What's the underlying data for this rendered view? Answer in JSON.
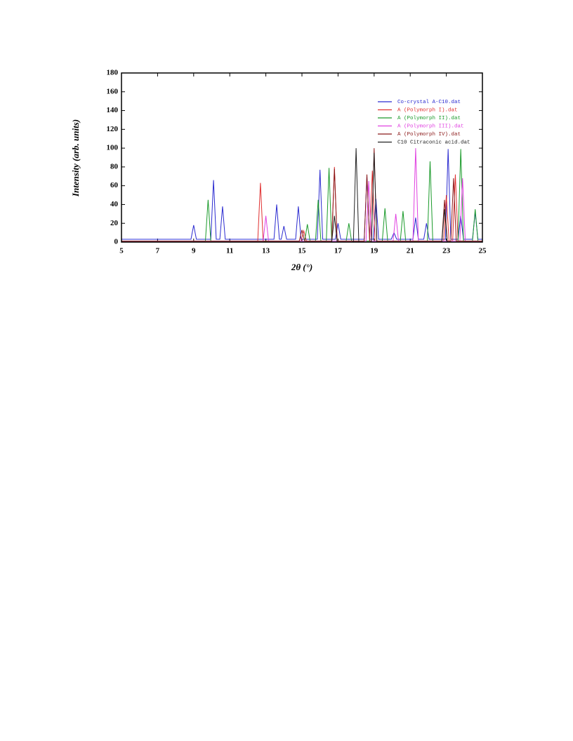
{
  "chart_data": {
    "type": "line",
    "xlabel": "2θ (°)",
    "ylabel": "Intensity (arb. units)",
    "xlim": [
      5,
      25
    ],
    "xticks": [
      5,
      7,
      9,
      11,
      13,
      15,
      17,
      19,
      21,
      23,
      25
    ],
    "ylim": [
      0,
      180
    ],
    "yticks": [
      0,
      20,
      40,
      60,
      80,
      100,
      120,
      140,
      160,
      180
    ],
    "legend": "upper right",
    "series": [
      {
        "name": "Co-crystal A-C10.dat",
        "color": "#2b2bd0",
        "x": [
          5,
          8.85,
          9.0,
          9.15,
          9.95,
          10.1,
          10.25,
          10.45,
          10.6,
          10.75,
          13.45,
          13.6,
          13.75,
          13.85,
          14.0,
          14.15,
          14.65,
          14.8,
          14.95,
          15.85,
          16.0,
          16.15,
          16.85,
          17.0,
          17.15,
          18.45,
          18.6,
          18.75,
          18.95,
          19.1,
          19.25,
          19.95,
          20.1,
          20.25,
          21.15,
          21.3,
          21.45,
          21.75,
          21.9,
          22.05,
          22.95,
          23.1,
          23.25,
          23.65,
          23.8,
          23.95,
          24.45,
          24.6,
          24.75,
          25
        ],
        "values": [
          3,
          3,
          18,
          3,
          3,
          66,
          3,
          3,
          38,
          3,
          3,
          40,
          3,
          3,
          17,
          3,
          3,
          38,
          3,
          3,
          77,
          3,
          3,
          20,
          3,
          3,
          70,
          3,
          3,
          46,
          3,
          3,
          10,
          3,
          3,
          26,
          3,
          3,
          20,
          3,
          3,
          99,
          3,
          3,
          28,
          3,
          3,
          32,
          3,
          3
        ]
      },
      {
        "name": "A (Polymorph I).dat",
        "color": "#e03030",
        "x": [
          5,
          12.55,
          12.7,
          12.85,
          14.95,
          15.1,
          15.25,
          16.65,
          16.8,
          16.95,
          18.75,
          18.9,
          19.05,
          22.85,
          23.0,
          23.15,
          23.35,
          23.5,
          23.65,
          25
        ],
        "values": [
          1,
          1,
          63,
          1,
          1,
          12,
          1,
          1,
          80,
          1,
          1,
          76,
          1,
          1,
          50,
          1,
          1,
          72,
          1,
          1
        ]
      },
      {
        "name": "A (Polymorph II).dat",
        "color": "#1a9a2a",
        "x": [
          5,
          9.65,
          9.8,
          9.95,
          15.15,
          15.3,
          15.45,
          15.75,
          15.9,
          16.05,
          16.35,
          16.5,
          16.65,
          17.45,
          17.6,
          17.75,
          19.45,
          19.6,
          19.75,
          20.45,
          20.6,
          20.75,
          21.95,
          22.1,
          22.25,
          23.65,
          23.8,
          23.95,
          24.45,
          24.6,
          24.75,
          25
        ],
        "values": [
          1,
          1,
          45,
          1,
          1,
          19,
          1,
          1,
          45,
          1,
          1,
          79,
          1,
          1,
          20,
          1,
          1,
          36,
          1,
          1,
          33,
          1,
          1,
          86,
          1,
          1,
          99,
          1,
          1,
          35,
          1,
          1
        ]
      },
      {
        "name": "A (Polymorph III).dat",
        "color": "#e040e0",
        "x": [
          5,
          12.85,
          13.0,
          13.15,
          18.55,
          18.7,
          18.85,
          20.05,
          20.2,
          20.35,
          21.15,
          21.3,
          21.45,
          23.75,
          23.9,
          24.05,
          25
        ],
        "values": [
          1,
          1,
          28,
          1,
          1,
          65,
          1,
          1,
          30,
          1,
          1,
          100,
          1,
          1,
          68,
          1,
          1
        ]
      },
      {
        "name": "A (Polymorph IV).dat",
        "color": "#8b1a1a",
        "x": [
          5,
          14.85,
          15.0,
          15.15,
          16.65,
          16.8,
          16.95,
          18.45,
          18.6,
          18.75,
          18.85,
          19.0,
          19.15,
          22.75,
          22.9,
          23.05,
          23.25,
          23.4,
          23.55,
          25
        ],
        "values": [
          1,
          1,
          13,
          1,
          1,
          78,
          1,
          1,
          72,
          1,
          1,
          100,
          1,
          1,
          45,
          1,
          1,
          68,
          1,
          1
        ]
      },
      {
        "name": "C10 Citraconic acid.dat",
        "color": "#222222",
        "x": [
          5,
          16.65,
          16.8,
          16.95,
          17.85,
          18.0,
          18.15,
          18.85,
          19.0,
          19.15,
          22.75,
          22.9,
          23.05,
          25
        ],
        "values": [
          0,
          0,
          28,
          0,
          0,
          100,
          0,
          0,
          95,
          0,
          0,
          35,
          0,
          0
        ]
      }
    ]
  }
}
